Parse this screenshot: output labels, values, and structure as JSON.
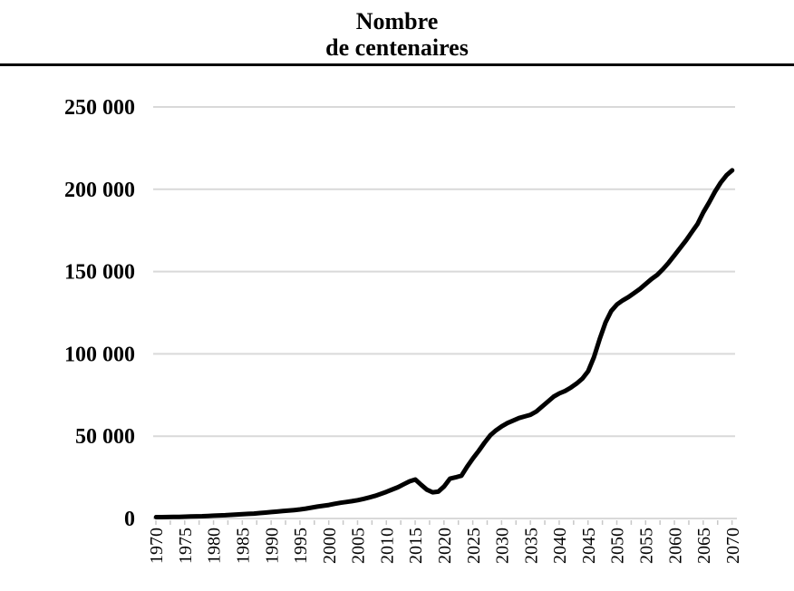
{
  "title": {
    "line1": "Nombre",
    "line2": "de centenaires"
  },
  "colors": {
    "line": "#000000",
    "grid": "#d9d9d9",
    "axis": "#d9d9d9",
    "tick": "#c8c8c8",
    "text": "#000000",
    "rule": "#000000",
    "background": "#ffffff"
  },
  "y_axis": {
    "ticks": [
      {
        "value": 0,
        "label": "0"
      },
      {
        "value": 50000,
        "label": "50 000"
      },
      {
        "value": 100000,
        "label": "100 000"
      },
      {
        "value": 150000,
        "label": "150 000"
      },
      {
        "value": 200000,
        "label": "200 000"
      },
      {
        "value": 250000,
        "label": "250 000"
      }
    ]
  },
  "x_axis": {
    "labels": [
      "1970",
      "1975",
      "1980",
      "1985",
      "1990",
      "1995",
      "2000",
      "2005",
      "2010",
      "2015",
      "2020",
      "2025",
      "2030",
      "2035",
      "2040",
      "2045",
      "2050",
      "2055",
      "2060",
      "2065",
      "2070"
    ],
    "label_interval_years": 5
  },
  "chart_data": {
    "type": "line",
    "title": "Nombre de centenaires",
    "xlabel": "",
    "ylabel": "Nombre de centenaires",
    "xlim": [
      1970,
      2070
    ],
    "ylim": [
      0,
      250000
    ],
    "grid": "horizontal",
    "legend": "none",
    "x": [
      1970,
      1971,
      1972,
      1973,
      1974,
      1975,
      1976,
      1977,
      1978,
      1979,
      1980,
      1981,
      1982,
      1983,
      1984,
      1985,
      1986,
      1987,
      1988,
      1989,
      1990,
      1991,
      1992,
      1993,
      1994,
      1995,
      1996,
      1997,
      1998,
      1999,
      2000,
      2001,
      2002,
      2003,
      2004,
      2005,
      2006,
      2007,
      2008,
      2009,
      2010,
      2011,
      2012,
      2013,
      2014,
      2015,
      2016,
      2017,
      2018,
      2019,
      2020,
      2021,
      2022,
      2023,
      2024,
      2025,
      2026,
      2027,
      2028,
      2029,
      2030,
      2031,
      2032,
      2033,
      2034,
      2035,
      2036,
      2037,
      2038,
      2039,
      2040,
      2041,
      2042,
      2043,
      2044,
      2045,
      2046,
      2047,
      2048,
      2049,
      2050,
      2051,
      2052,
      2053,
      2054,
      2055,
      2056,
      2057,
      2058,
      2059,
      2060,
      2061,
      2062,
      2063,
      2064,
      2065,
      2066,
      2067,
      2068,
      2069,
      2070
    ],
    "series": [
      {
        "name": "Nombre de centenaires",
        "values": [
          800,
          850,
          900,
          950,
          1000,
          1100,
          1200,
          1300,
          1400,
          1550,
          1700,
          1850,
          2000,
          2200,
          2400,
          2600,
          2800,
          3000,
          3300,
          3600,
          3900,
          4200,
          4500,
          4800,
          5100,
          5500,
          6000,
          6600,
          7200,
          7700,
          8200,
          8900,
          9500,
          10000,
          10500,
          11100,
          11900,
          12800,
          13700,
          14900,
          16200,
          17600,
          19000,
          20800,
          22600,
          23700,
          20500,
          17500,
          15900,
          16300,
          19500,
          24200,
          25000,
          26000,
          31500,
          36500,
          41000,
          46000,
          50500,
          53500,
          56000,
          58000,
          59500,
          61000,
          62000,
          63000,
          65000,
          68000,
          71000,
          74000,
          76000,
          77500,
          79500,
          82000,
          85000,
          89500,
          98000,
          109000,
          119000,
          126000,
          130000,
          132500,
          134500,
          137000,
          139500,
          142500,
          145500,
          148000,
          151500,
          155500,
          160000,
          164500,
          169000,
          174000,
          179000,
          186000,
          192000,
          198500,
          204000,
          208500,
          211500
        ]
      }
    ]
  }
}
